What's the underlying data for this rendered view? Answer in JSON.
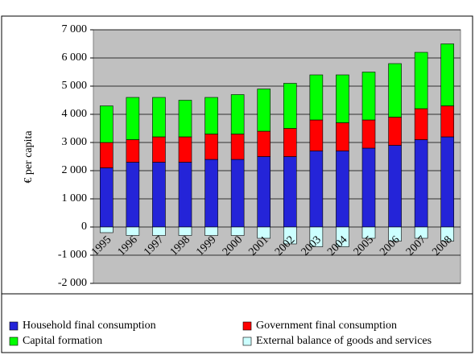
{
  "chart_data": {
    "type": "stacked-bar",
    "y_label": "€ per capita",
    "categories": [
      "1995",
      "1996",
      "1997",
      "1998",
      "1999",
      "2000",
      "2001",
      "2002",
      "2003",
      "2004",
      "2005",
      "2006",
      "2007",
      "2008"
    ],
    "series": [
      {
        "name": "Household  final consumption",
        "color": "#2424d8",
        "values": [
          2100,
          2300,
          2300,
          2300,
          2400,
          2400,
          2500,
          2500,
          2700,
          2700,
          2800,
          2900,
          3100,
          3200
        ]
      },
      {
        "name": "Government final consumption",
        "color": "#ff0000",
        "values": [
          900,
          800,
          900,
          900,
          900,
          900,
          900,
          1000,
          1100,
          1000,
          1000,
          1000,
          1100,
          1100
        ]
      },
      {
        "name": "Capital formation",
        "color": "#00ff00",
        "values": [
          1300,
          1500,
          1400,
          1300,
          1300,
          1400,
          1500,
          1600,
          1600,
          1700,
          1700,
          1900,
          2000,
          2200
        ]
      },
      {
        "name": "External balance of goods and services",
        "color": "#ccffff",
        "values": [
          -200,
          -300,
          -300,
          -300,
          -300,
          -300,
          -400,
          -600,
          -700,
          -700,
          -400,
          -500,
          -400,
          -500
        ]
      }
    ],
    "ylim": [
      -2000,
      7000
    ],
    "yticks": [
      {
        "value": -2000,
        "label": "-2 000"
      },
      {
        "value": -1000,
        "label": "-1 000"
      },
      0,
      {
        "value": 1000,
        "label": "1 000"
      },
      {
        "value": 2000,
        "label": "2 000"
      },
      {
        "value": 3000,
        "label": "3 000"
      },
      {
        "value": 4000,
        "label": "4 000"
      },
      {
        "value": 5000,
        "label": "5 000"
      },
      {
        "value": 6000,
        "label": "6 000"
      },
      {
        "value": 7000,
        "label": "7 000"
      }
    ],
    "grid": true,
    "legend": "bottom"
  }
}
